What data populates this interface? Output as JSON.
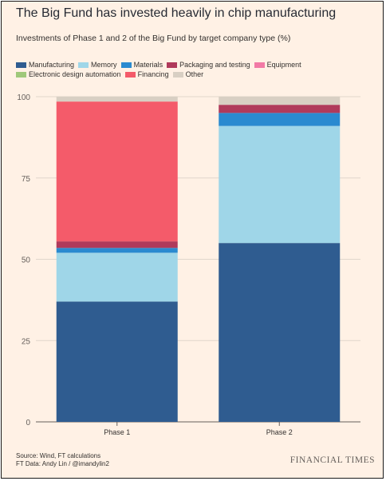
{
  "title": "The Big Fund has invested heavily in chip manufacturing",
  "subtitle": "Investments of Phase 1 and 2 of the Big Fund by target company type (%)",
  "footer": {
    "source": "Source: Wind, FT calculations",
    "credit": "FT Data: Andy Lin / @imandylin2",
    "brand": "FINANCIAL TIMES"
  },
  "chart_data": {
    "type": "bar",
    "stacked": true,
    "categories": [
      "Phase 1",
      "Phase 2"
    ],
    "ylim": [
      0,
      100
    ],
    "yticks": [
      0,
      25,
      50,
      75,
      100
    ],
    "grid": true,
    "legend_position": "top",
    "series": [
      {
        "name": "Manufacturing",
        "color": "#2f5c90",
        "values": [
          37,
          55
        ]
      },
      {
        "name": "Memory",
        "color": "#9fd6e8",
        "values": [
          15,
          36
        ]
      },
      {
        "name": "Materials",
        "color": "#2a8ad0",
        "values": [
          1.5,
          4
        ]
      },
      {
        "name": "Packaging and testing",
        "color": "#b03a5b",
        "values": [
          2,
          2.5
        ]
      },
      {
        "name": "Equipment",
        "color": "#f27aa6",
        "values": [
          0,
          0
        ]
      },
      {
        "name": "Electronic design automation",
        "color": "#9fc87a",
        "values": [
          0,
          0
        ]
      },
      {
        "name": "Financing",
        "color": "#f45b6a",
        "values": [
          43,
          0
        ]
      },
      {
        "name": "Other",
        "color": "#d8cfc3",
        "values": [
          1.5,
          2.5
        ]
      }
    ]
  }
}
